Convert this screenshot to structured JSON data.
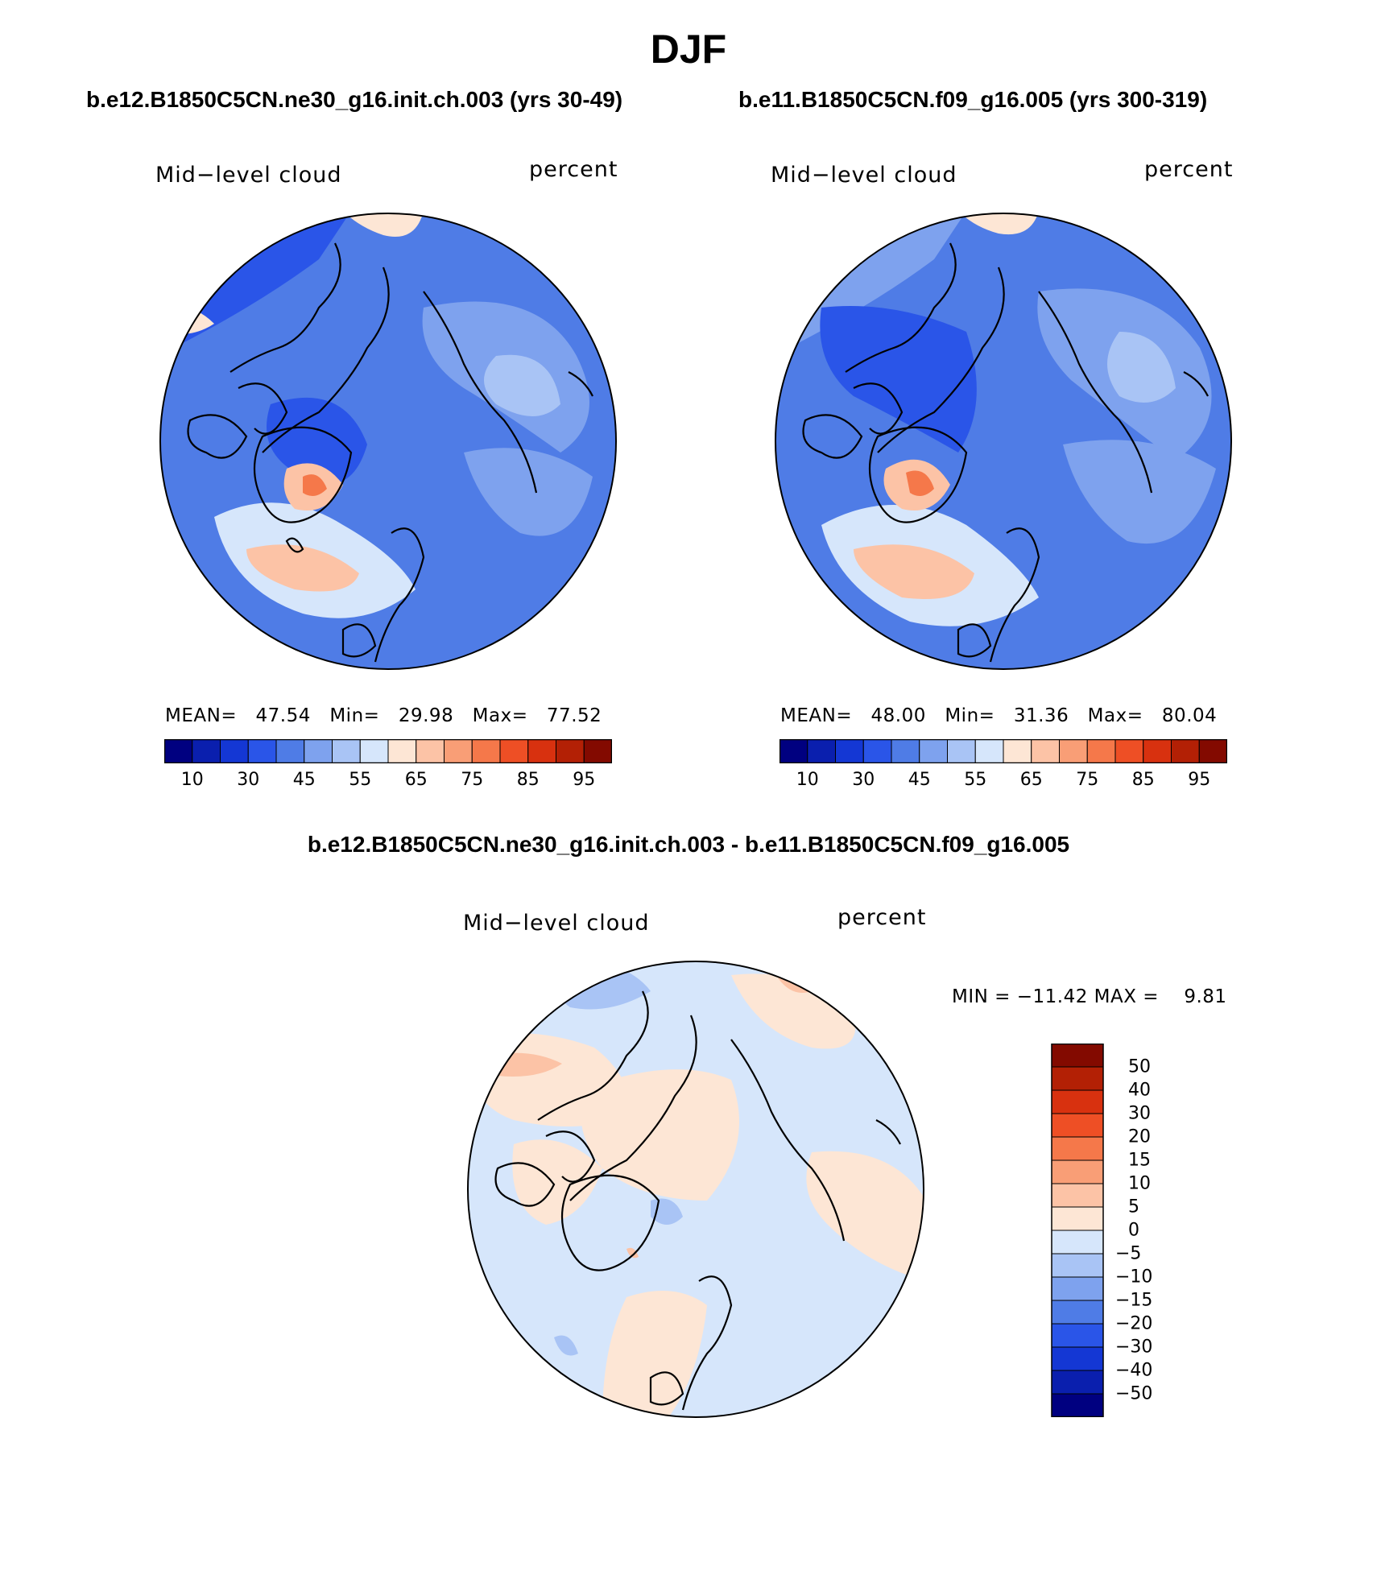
{
  "title": "DJF",
  "panels": [
    {
      "case_title": "b.e12.B1850C5CN.ne30_g16.init.ch.003 (yrs 30-49)",
      "variable": "Mid−level cloud",
      "units": "percent",
      "stats": {
        "mean_label": "MEAN=",
        "mean": "47.54",
        "min_label": "Min=",
        "min": "29.98",
        "max_label": "Max=",
        "max": "77.52"
      }
    },
    {
      "case_title": "b.e11.B1850C5CN.f09_g16.005 (yrs 300-319)",
      "variable": "Mid−level cloud",
      "units": "percent",
      "stats": {
        "mean_label": "MEAN=",
        "mean": "48.00",
        "min_label": "Min=",
        "min": "31.36",
        "max_label": "Max=",
        "max": "80.04"
      }
    }
  ],
  "colorbar": {
    "ticks": [
      "10",
      "30",
      "45",
      "55",
      "65",
      "75",
      "85",
      "95"
    ],
    "colors": [
      "#000080",
      "#0a1fae",
      "#1437d4",
      "#2a55e8",
      "#4f7ce6",
      "#7ea2ee",
      "#a9c4f5",
      "#d6e6fb",
      "#fde6d5",
      "#fcc3a6",
      "#f99e76",
      "#f5784a",
      "#ee4f25",
      "#d8310f",
      "#b32005",
      "#830a00"
    ]
  },
  "difference": {
    "title": "b.e12.B1850C5CN.ne30_g16.init.ch.003 - b.e11.B1850C5CN.f09_g16.005",
    "variable": "Mid−level cloud",
    "units": "percent",
    "minmax": "MIN = −11.42 MAX =    9.81",
    "colorbar_ticks": [
      "50",
      "40",
      "30",
      "20",
      "15",
      "10",
      "5",
      "0",
      "−5",
      "−10",
      "−15",
      "−20",
      "−30",
      "−40",
      "−50"
    ],
    "colorbar_colors": [
      "#830a00",
      "#b32005",
      "#d8310f",
      "#ee4f25",
      "#f5784a",
      "#f99e76",
      "#fcc3a6",
      "#fde6d5",
      "#d6e6fb",
      "#a9c4f5",
      "#7ea2ee",
      "#4f7ce6",
      "#2a55e8",
      "#1437d4",
      "#0a1fae",
      "#000080"
    ]
  },
  "colors": {
    "background": "#ffffff",
    "map_base_abs": "#4f7ce6",
    "map_base_diff": "#d6e6fb",
    "coastline": "#000000"
  }
}
